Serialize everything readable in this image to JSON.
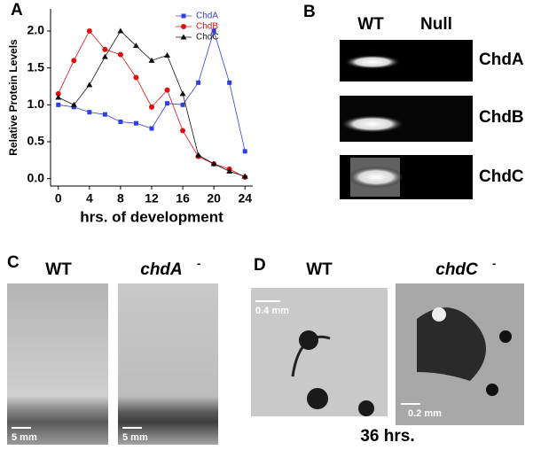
{
  "chart_data": {
    "type": "line",
    "panel_label": "A",
    "x_label": "hrs. of development",
    "y_label": "Relative Protein Levels",
    "x": [
      0,
      2,
      4,
      6,
      8,
      10,
      12,
      14,
      16,
      18,
      20,
      22,
      24
    ],
    "series": [
      {
        "name": "ChdA",
        "color": "#2f3fe0",
        "marker": "square",
        "values": [
          1.0,
          0.97,
          0.9,
          0.87,
          0.77,
          0.75,
          0.68,
          1.02,
          1.0,
          1.3,
          2.0,
          1.3,
          0.37
        ]
      },
      {
        "name": "ChdB",
        "color": "#e01010",
        "marker": "circle",
        "values": [
          1.15,
          1.6,
          2.0,
          1.75,
          1.68,
          1.37,
          0.97,
          1.2,
          0.65,
          0.3,
          0.2,
          0.13,
          0.02
        ]
      },
      {
        "name": "ChdC",
        "color": "#111111",
        "marker": "triangle",
        "values": [
          1.1,
          1.0,
          1.27,
          1.65,
          2.0,
          1.8,
          1.6,
          1.67,
          1.15,
          0.32,
          0.2,
          0.1,
          0.03
        ]
      }
    ],
    "xlim": [
      -1,
      25
    ],
    "xticks": [
      0,
      4,
      8,
      12,
      16,
      20,
      24
    ],
    "ylim": [
      -0.1,
      2.3
    ],
    "yticks": [
      {
        "value": 0,
        "label": "0.0"
      },
      {
        "value": 0.5,
        "label": "0.5"
      },
      {
        "value": 1,
        "label": "1.0"
      },
      {
        "value": 1.5,
        "label": "1.5"
      },
      {
        "value": 2,
        "label": "2.0"
      }
    ],
    "legend": "upper right",
    "grid": false
  },
  "panels": {
    "b": {
      "label": "B",
      "columns": [
        "WT",
        "Null"
      ],
      "rows": [
        "ChdA",
        "ChdB",
        "ChdC"
      ]
    },
    "c": {
      "label": "C",
      "left": "WT",
      "right": "chdA",
      "right_sup": "-",
      "scale_left": "5 mm",
      "scale_right": "5 mm"
    },
    "d": {
      "label": "D",
      "left": "WT",
      "right": "chdC",
      "right_sup": "-",
      "scale_left": "0.4 mm",
      "scale_right": "0.2 mm",
      "caption": "36 hrs."
    }
  }
}
